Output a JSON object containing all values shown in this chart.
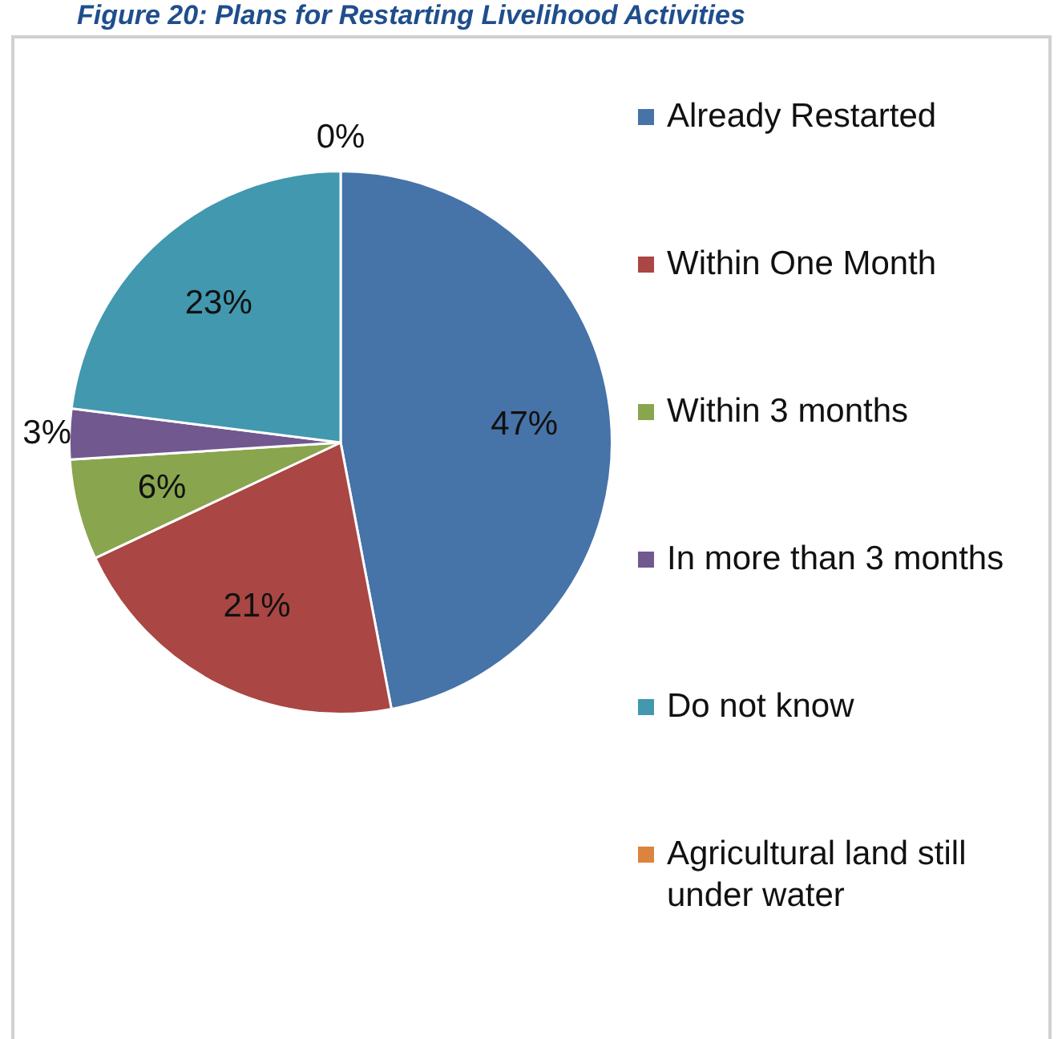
{
  "chart_data": {
    "type": "pie",
    "title": "Figure 20: Plans for Restarting Livelihood Activities",
    "categories": [
      "Already Restarted",
      "Within One Month",
      "Within 3 months",
      "In more than 3 months",
      "Do not know",
      "Agricultural land still under water"
    ],
    "values": [
      47,
      21,
      6,
      3,
      23,
      0
    ],
    "colors": [
      "#4673a8",
      "#aa4643",
      "#89a54e",
      "#71588f",
      "#4198af",
      "#db843d"
    ],
    "value_labels": [
      "47%",
      "21%",
      "6%",
      "3%",
      "23%",
      "0%"
    ],
    "legend": "right"
  }
}
